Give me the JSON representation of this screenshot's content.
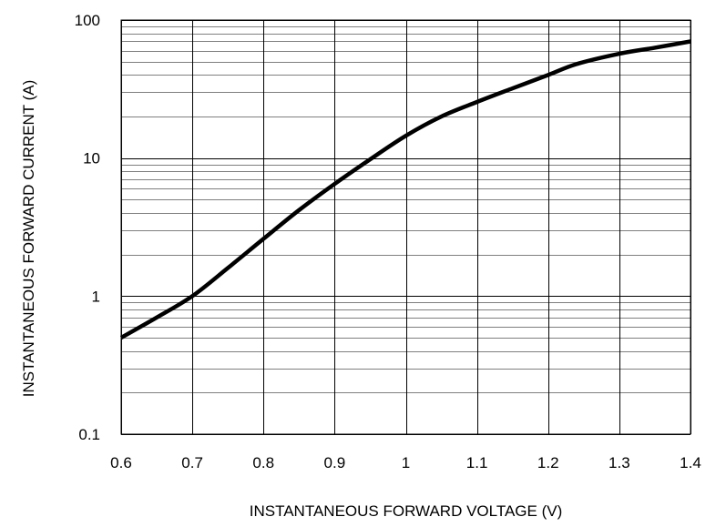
{
  "chart_data": {
    "type": "line",
    "title": "",
    "xlabel": "INSTANTANEOUS FORWARD VOLTAGE (V)",
    "ylabel": "INSTANTANEOUS FORWARD CURRENT (A)",
    "xlim": [
      0.6,
      1.4
    ],
    "ylim": [
      0.1,
      100
    ],
    "yscale": "log",
    "grid": true,
    "legend": "none",
    "xticks": [
      0.6,
      0.7,
      0.8,
      0.9,
      1.0,
      1.1,
      1.2,
      1.3,
      1.4
    ],
    "xtick_labels": [
      "0.6",
      "0.7",
      "0.8",
      "0.9",
      "1",
      "1.1",
      "1.2",
      "1.3",
      "1.4"
    ],
    "yticks": [
      0.1,
      1,
      10,
      100
    ],
    "ytick_labels": [
      "0.1",
      "1",
      "10",
      "100"
    ],
    "series": [
      {
        "color": "#000000",
        "x": [
          0.6,
          0.65,
          0.7,
          0.75,
          0.8,
          0.85,
          0.9,
          0.95,
          1.0,
          1.05,
          1.1,
          1.15,
          1.2,
          1.24,
          1.3,
          1.35,
          1.4
        ],
        "y": [
          0.5,
          0.7,
          1.0,
          1.6,
          2.6,
          4.2,
          6.5,
          9.8,
          14.5,
          20.0,
          25.5,
          32.0,
          40.0,
          48.0,
          57.0,
          63.0,
          70.0
        ]
      }
    ]
  }
}
